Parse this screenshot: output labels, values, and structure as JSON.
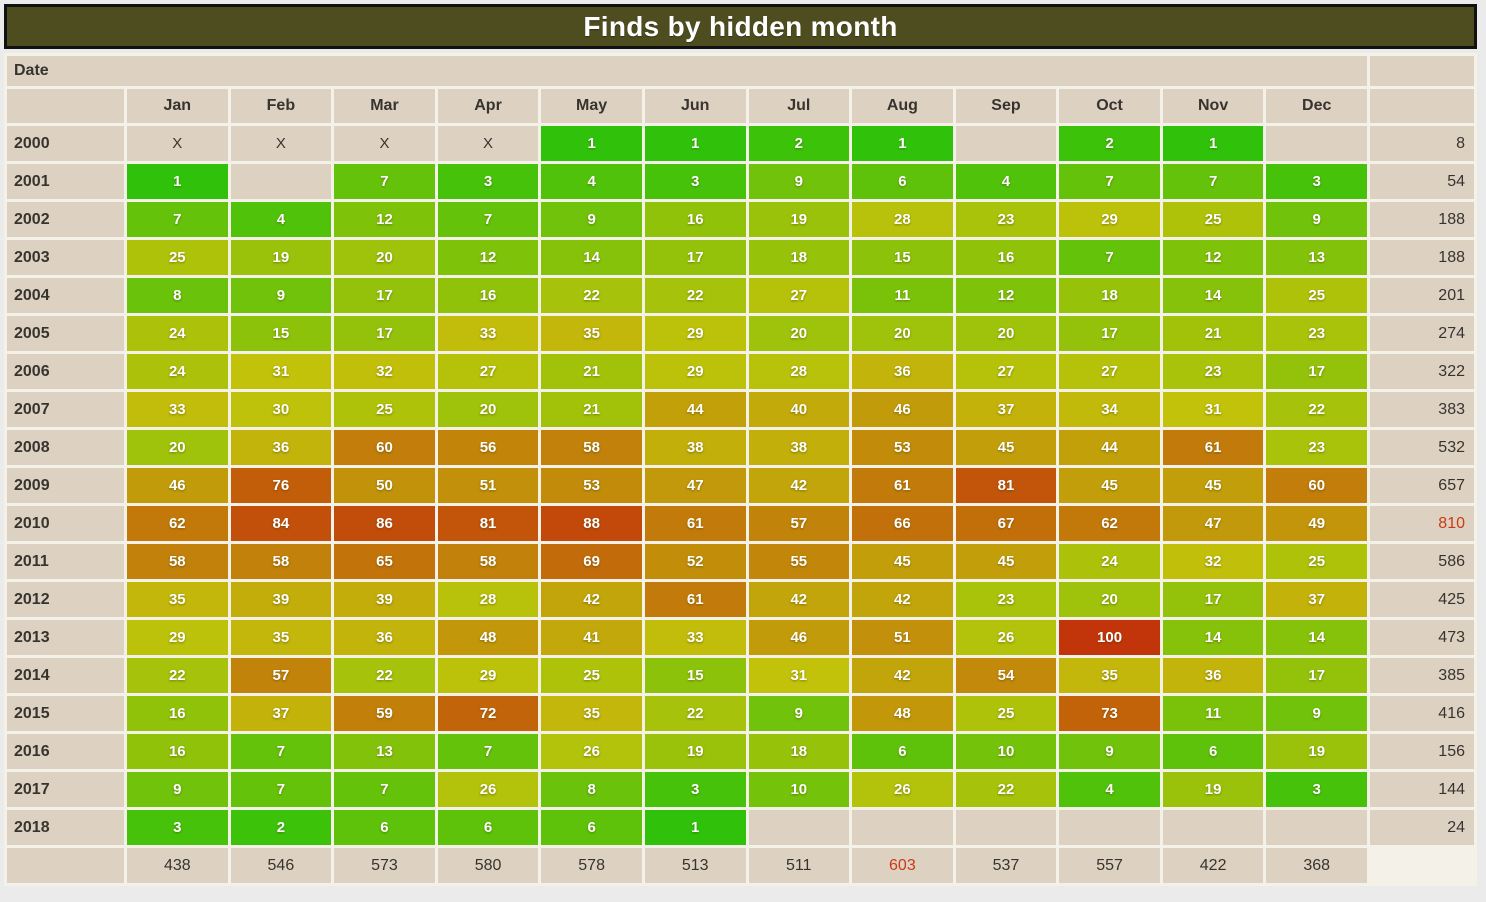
{
  "chart_data": {
    "type": "heatmap",
    "title": "Finds by hidden month",
    "corner_label": "Date",
    "columns": [
      "Jan",
      "Feb",
      "Mar",
      "Apr",
      "May",
      "Jun",
      "Jul",
      "Aug",
      "Sep",
      "Oct",
      "Nov",
      "Dec"
    ],
    "no_data_marker": "X",
    "scale": {
      "max": 100
    },
    "rows": [
      {
        "year": "2000",
        "values": [
          "X",
          "X",
          "X",
          "X",
          1,
          1,
          2,
          1,
          "",
          2,
          1,
          ""
        ],
        "total": 8,
        "total_red": false
      },
      {
        "year": "2001",
        "values": [
          1,
          "",
          7,
          3,
          4,
          3,
          9,
          6,
          4,
          7,
          7,
          3
        ],
        "total": 54,
        "total_red": false
      },
      {
        "year": "2002",
        "values": [
          7,
          4,
          12,
          7,
          9,
          16,
          19,
          28,
          23,
          29,
          25,
          9
        ],
        "total": 188,
        "total_red": false
      },
      {
        "year": "2003",
        "values": [
          25,
          19,
          20,
          12,
          14,
          17,
          18,
          15,
          16,
          7,
          12,
          13
        ],
        "total": 188,
        "total_red": false
      },
      {
        "year": "2004",
        "values": [
          8,
          9,
          17,
          16,
          22,
          22,
          27,
          11,
          12,
          18,
          14,
          25
        ],
        "total": 201,
        "total_red": false
      },
      {
        "year": "2005",
        "values": [
          24,
          15,
          17,
          33,
          35,
          29,
          20,
          20,
          20,
          17,
          21,
          23
        ],
        "total": 274,
        "total_red": false
      },
      {
        "year": "2006",
        "values": [
          24,
          31,
          32,
          27,
          21,
          29,
          28,
          36,
          27,
          27,
          23,
          17
        ],
        "total": 322,
        "total_red": false
      },
      {
        "year": "2007",
        "values": [
          33,
          30,
          25,
          20,
          21,
          44,
          40,
          46,
          37,
          34,
          31,
          22
        ],
        "total": 383,
        "total_red": false
      },
      {
        "year": "2008",
        "values": [
          20,
          36,
          60,
          56,
          58,
          38,
          38,
          53,
          45,
          44,
          61,
          23
        ],
        "total": 532,
        "total_red": false
      },
      {
        "year": "2009",
        "values": [
          46,
          76,
          50,
          51,
          53,
          47,
          42,
          61,
          81,
          45,
          45,
          60
        ],
        "total": 657,
        "total_red": false
      },
      {
        "year": "2010",
        "values": [
          62,
          84,
          86,
          81,
          88,
          61,
          57,
          66,
          67,
          62,
          47,
          49
        ],
        "total": 810,
        "total_red": true
      },
      {
        "year": "2011",
        "values": [
          58,
          58,
          65,
          58,
          69,
          52,
          55,
          45,
          45,
          24,
          32,
          25
        ],
        "total": 586,
        "total_red": false
      },
      {
        "year": "2012",
        "values": [
          35,
          39,
          39,
          28,
          42,
          61,
          42,
          42,
          23,
          20,
          17,
          37
        ],
        "total": 425,
        "total_red": false
      },
      {
        "year": "2013",
        "values": [
          29,
          35,
          36,
          48,
          41,
          33,
          46,
          51,
          26,
          100,
          14,
          14
        ],
        "total": 473,
        "total_red": false
      },
      {
        "year": "2014",
        "values": [
          22,
          57,
          22,
          29,
          25,
          15,
          31,
          42,
          54,
          35,
          36,
          17
        ],
        "total": 385,
        "total_red": false
      },
      {
        "year": "2015",
        "values": [
          16,
          37,
          59,
          72,
          35,
          22,
          9,
          48,
          25,
          73,
          11,
          9
        ],
        "total": 416,
        "total_red": false
      },
      {
        "year": "2016",
        "values": [
          16,
          7,
          13,
          7,
          26,
          19,
          18,
          6,
          10,
          9,
          6,
          19
        ],
        "total": 156,
        "total_red": false
      },
      {
        "year": "2017",
        "values": [
          9,
          7,
          7,
          26,
          8,
          3,
          10,
          26,
          22,
          4,
          19,
          3
        ],
        "total": 144,
        "total_red": false
      },
      {
        "year": "2018",
        "values": [
          3,
          2,
          6,
          6,
          6,
          1,
          "",
          "",
          "",
          "",
          "",
          ""
        ],
        "total": 24,
        "total_red": false
      }
    ],
    "column_totals": {
      "values": [
        438,
        546,
        573,
        580,
        578,
        513,
        511,
        603,
        537,
        557,
        422,
        368
      ],
      "red_indexes": [
        7
      ]
    }
  },
  "colors": {
    "page_bg": "#ebebeb",
    "gap_bg": "#f4f1e9",
    "cell_beige": "#ddd1c2",
    "title_bg": "#4d4d20",
    "title_border": "#111111",
    "dark_text": "#37342f",
    "alert_red": "#cc3a14",
    "scale_low": "#16c40a",
    "scale_mid": "#c88b06",
    "scale_high": "#c23a10",
    "value_text": "#ffffff"
  }
}
